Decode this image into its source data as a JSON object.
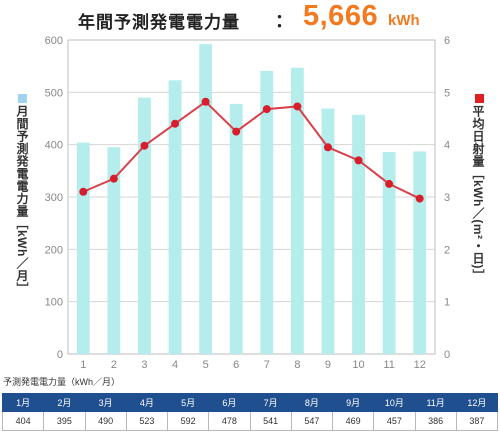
{
  "header": {
    "title": "年間予測発電電力量",
    "colon": "：",
    "total_value": "5,666",
    "total_unit": "kWh"
  },
  "legend": {
    "left": "月間予測発電電力量［kWh／月］",
    "right": "平均日射量［kWh／(m²・日)］"
  },
  "table": {
    "caption": "予測発電電力量（kWh／月）",
    "months": [
      "1月",
      "2月",
      "3月",
      "4月",
      "5月",
      "6月",
      "7月",
      "8月",
      "9月",
      "10月",
      "11月",
      "12月"
    ],
    "values": [
      "404",
      "395",
      "490",
      "523",
      "592",
      "478",
      "541",
      "547",
      "469",
      "457",
      "386",
      "387"
    ]
  },
  "colors": {
    "bar": "#b5ecec",
    "line": "#d9404a",
    "marker": "#d81e2c",
    "total": "#f47a20",
    "table_header": "#1f4f8f"
  },
  "chart_data": {
    "type": "bar",
    "categories": [
      "1",
      "2",
      "3",
      "4",
      "5",
      "6",
      "7",
      "8",
      "9",
      "10",
      "11",
      "12"
    ],
    "series": [
      {
        "values": [
          404,
          395,
          490,
          523,
          592,
          478,
          541,
          547,
          469,
          457,
          386,
          387
        ],
        "axis": "left",
        "kind": "bar"
      },
      {
        "values": [
          3.1,
          3.35,
          3.98,
          4.4,
          4.82,
          4.25,
          4.68,
          4.73,
          3.95,
          3.7,
          3.25,
          2.97
        ],
        "axis": "right",
        "kind": "line"
      }
    ],
    "left_ticks": [
      "0",
      "100",
      "200",
      "300",
      "400",
      "500",
      "600"
    ],
    "right_ticks": [
      "0",
      "1",
      "2",
      "3",
      "4",
      "5",
      "6"
    ],
    "ylim_left": [
      0,
      600
    ],
    "ylim_right": [
      0,
      6
    ],
    "grid": true
  }
}
